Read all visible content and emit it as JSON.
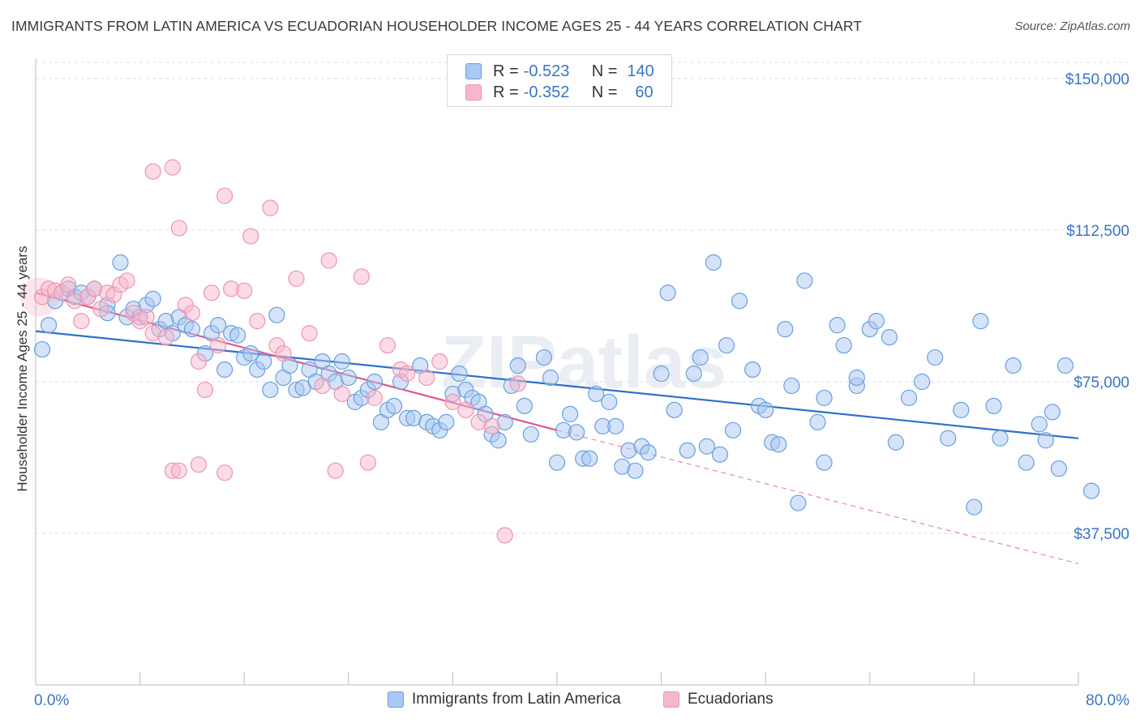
{
  "title": "IMMIGRANTS FROM LATIN AMERICA VS ECUADORIAN HOUSEHOLDER INCOME AGES 25 - 44 YEARS CORRELATION CHART",
  "source": "Source: ZipAtlas.com",
  "watermark": "ZIPatlas",
  "legend_top": {
    "rows": [
      {
        "r_label": "R =",
        "r_value": "-0.523",
        "n_label": "N =",
        "n_value": "140",
        "color": "#a9c8f2"
      },
      {
        "r_label": "R =",
        "r_value": "-0.352",
        "n_label": "N =",
        "n_value": "60",
        "color": "#f7b7cb"
      }
    ]
  },
  "legend_bottom": [
    {
      "label": "Immigrants from Latin America",
      "color": "#a9c8f2"
    },
    {
      "label": "Ecuadorians",
      "color": "#f7b7cb"
    }
  ],
  "chart_data": {
    "type": "scatter",
    "title": "IMMIGRANTS FROM LATIN AMERICA VS ECUADORIAN HOUSEHOLDER INCOME AGES 25 - 44 YEARS CORRELATION CHART",
    "xlabel": "",
    "ylabel": "Householder Income Ages 25 - 44 years",
    "xlim": [
      0,
      80
    ],
    "ylim": [
      0,
      155000
    ],
    "x_tick_labels": [
      "0.0%",
      "80.0%"
    ],
    "y_ticks": [
      37500,
      75000,
      112500,
      150000
    ],
    "y_tick_labels": [
      "$37,500",
      "$75,000",
      "$112,500",
      "$150,000"
    ],
    "grid": true,
    "legend_position": "top-center",
    "colors": {
      "blue_fill": "#a9c8f2",
      "blue_stroke": "#6a9fde",
      "blue_line": "#2f6fcb",
      "pink_fill": "#f7b7cb",
      "pink_stroke": "#ee95b1",
      "pink_line": "#e0578b",
      "axis_text": "#3a75c4"
    },
    "series": [
      {
        "name": "Immigrants from Latin America",
        "r": -0.523,
        "n": 140,
        "trend": {
          "x": [
            0,
            80
          ],
          "y": [
            87500,
            61000
          ],
          "style": "solid"
        },
        "points": [
          [
            0.5,
            83000
          ],
          [
            1,
            89000
          ],
          [
            1.5,
            95000
          ],
          [
            2,
            97000
          ],
          [
            2.5,
            98000
          ],
          [
            3,
            96000
          ],
          [
            3.5,
            97000
          ],
          [
            4,
            96000
          ],
          [
            4.5,
            98000
          ],
          [
            5.5,
            94000
          ],
          [
            5.5,
            92000
          ],
          [
            6.5,
            104500
          ],
          [
            7,
            91000
          ],
          [
            7.5,
            93000
          ],
          [
            8,
            91000
          ],
          [
            8.5,
            94000
          ],
          [
            9,
            95500
          ],
          [
            9.5,
            88000
          ],
          [
            10,
            90000
          ],
          [
            10.5,
            87000
          ],
          [
            11,
            91000
          ],
          [
            11.5,
            89000
          ],
          [
            12,
            88000
          ],
          [
            13,
            82000
          ],
          [
            13.5,
            87000
          ],
          [
            14,
            89000
          ],
          [
            14.5,
            78000
          ],
          [
            15,
            87000
          ],
          [
            15.5,
            86500
          ],
          [
            16,
            81000
          ],
          [
            16.5,
            82000
          ],
          [
            17,
            78000
          ],
          [
            17.5,
            80000
          ],
          [
            18,
            73000
          ],
          [
            18.5,
            91500
          ],
          [
            19,
            76000
          ],
          [
            19.5,
            79000
          ],
          [
            20,
            73000
          ],
          [
            20.5,
            73500
          ],
          [
            21,
            78000
          ],
          [
            21.5,
            75000
          ],
          [
            22,
            80000
          ],
          [
            22.5,
            77000
          ],
          [
            23,
            75000
          ],
          [
            23.5,
            80000
          ],
          [
            24,
            76000
          ],
          [
            24.5,
            70000
          ],
          [
            25,
            71000
          ],
          [
            25.5,
            73000
          ],
          [
            26,
            75000
          ],
          [
            26.5,
            65000
          ],
          [
            27,
            68000
          ],
          [
            27.5,
            69000
          ],
          [
            28,
            75000
          ],
          [
            28.5,
            66000
          ],
          [
            29,
            66000
          ],
          [
            29.5,
            79000
          ],
          [
            30,
            65000
          ],
          [
            30.5,
            64000
          ],
          [
            31,
            63000
          ],
          [
            31.5,
            65000
          ],
          [
            32,
            72000
          ],
          [
            32.5,
            77000
          ],
          [
            33,
            73000
          ],
          [
            33.5,
            71000
          ],
          [
            34,
            70000
          ],
          [
            34.5,
            67000
          ],
          [
            35,
            62000
          ],
          [
            35.5,
            60500
          ],
          [
            36,
            65000
          ],
          [
            36.5,
            74000
          ],
          [
            37,
            79000
          ],
          [
            37.5,
            69000
          ],
          [
            38,
            62000
          ],
          [
            39,
            81000
          ],
          [
            39.5,
            76000
          ],
          [
            40,
            55000
          ],
          [
            40.5,
            63000
          ],
          [
            41,
            67000
          ],
          [
            41.5,
            62500
          ],
          [
            42,
            56000
          ],
          [
            42.5,
            56000
          ],
          [
            43,
            72000
          ],
          [
            43.5,
            64000
          ],
          [
            44,
            70000
          ],
          [
            44.5,
            64000
          ],
          [
            45,
            54000
          ],
          [
            45.5,
            58000
          ],
          [
            46,
            53000
          ],
          [
            46.5,
            59000
          ],
          [
            47,
            57500
          ],
          [
            48,
            77000
          ],
          [
            48.5,
            97000
          ],
          [
            49,
            68000
          ],
          [
            50,
            58000
          ],
          [
            50.5,
            77000
          ],
          [
            51,
            81000
          ],
          [
            51.5,
            59000
          ],
          [
            52,
            104500
          ],
          [
            52.5,
            57000
          ],
          [
            53,
            84000
          ],
          [
            53.5,
            63000
          ],
          [
            54,
            95000
          ],
          [
            55,
            78000
          ],
          [
            55.5,
            69000
          ],
          [
            56,
            68000
          ],
          [
            56.5,
            60000
          ],
          [
            57,
            59500
          ],
          [
            57.5,
            88000
          ],
          [
            58,
            74000
          ],
          [
            58.5,
            45000
          ],
          [
            59,
            100000
          ],
          [
            60,
            65000
          ],
          [
            60.5,
            55000
          ],
          [
            60.5,
            71000
          ],
          [
            61.5,
            89000
          ],
          [
            62,
            84000
          ],
          [
            63,
            74000
          ],
          [
            63,
            76000
          ],
          [
            64,
            88000
          ],
          [
            64.5,
            90000
          ],
          [
            65.5,
            86000
          ],
          [
            66,
            60000
          ],
          [
            67,
            71000
          ],
          [
            68,
            75000
          ],
          [
            69,
            81000
          ],
          [
            70,
            61000
          ],
          [
            71,
            68000
          ],
          [
            72,
            44000
          ],
          [
            72.5,
            90000
          ],
          [
            73.5,
            69000
          ],
          [
            74,
            61000
          ],
          [
            75,
            79000
          ],
          [
            76,
            55000
          ],
          [
            77,
            64500
          ],
          [
            77.5,
            60500
          ],
          [
            78,
            67500
          ],
          [
            78.5,
            53500
          ],
          [
            79,
            79000
          ],
          [
            81,
            48000
          ]
        ]
      },
      {
        "name": "Ecuadorians",
        "r": -0.352,
        "n": 60,
        "trend": {
          "x": [
            0,
            40
          ],
          "y": [
            97000,
            63000
          ],
          "style": "solid",
          "extend_to": [
            80,
            30000
          ],
          "extend_style": "dashed"
        },
        "points": [
          [
            0.5,
            96000
          ],
          [
            1,
            98000
          ],
          [
            1.5,
            97500
          ],
          [
            2,
            97000
          ],
          [
            2.5,
            99000
          ],
          [
            3,
            95000
          ],
          [
            3.5,
            90000
          ],
          [
            4,
            96000
          ],
          [
            4.5,
            98000
          ],
          [
            5,
            93000
          ],
          [
            5.5,
            97000
          ],
          [
            6,
            96500
          ],
          [
            6.5,
            99000
          ],
          [
            7,
            100000
          ],
          [
            7.5,
            92000
          ],
          [
            8,
            90000
          ],
          [
            8.5,
            91000
          ],
          [
            9,
            87000
          ],
          [
            10,
            86000
          ],
          [
            10.5,
            128000
          ],
          [
            11,
            113000
          ],
          [
            11.5,
            94000
          ],
          [
            12,
            92000
          ],
          [
            12.5,
            80000
          ],
          [
            13,
            73000
          ],
          [
            13.5,
            97000
          ],
          [
            14,
            84000
          ],
          [
            14.5,
            121000
          ],
          [
            15,
            98000
          ],
          [
            16,
            97500
          ],
          [
            16.5,
            111000
          ],
          [
            17,
            90000
          ],
          [
            18,
            118000
          ],
          [
            18.5,
            84000
          ],
          [
            19,
            82000
          ],
          [
            20,
            100500
          ],
          [
            21,
            87000
          ],
          [
            22,
            74000
          ],
          [
            22.5,
            105000
          ],
          [
            23,
            53000
          ],
          [
            23.5,
            72000
          ],
          [
            25,
            101000
          ],
          [
            25.5,
            55000
          ],
          [
            26,
            71000
          ],
          [
            27,
            84000
          ],
          [
            28,
            78000
          ],
          [
            28.5,
            77000
          ],
          [
            30,
            76000
          ],
          [
            31,
            80000
          ],
          [
            32,
            70000
          ],
          [
            33,
            68000
          ],
          [
            34,
            65000
          ],
          [
            35,
            64000
          ],
          [
            36,
            37000
          ],
          [
            37,
            74500
          ],
          [
            9,
            127000
          ],
          [
            10.5,
            53000
          ],
          [
            11,
            53000
          ],
          [
            12.5,
            54500
          ],
          [
            14.5,
            52500
          ]
        ]
      }
    ]
  }
}
